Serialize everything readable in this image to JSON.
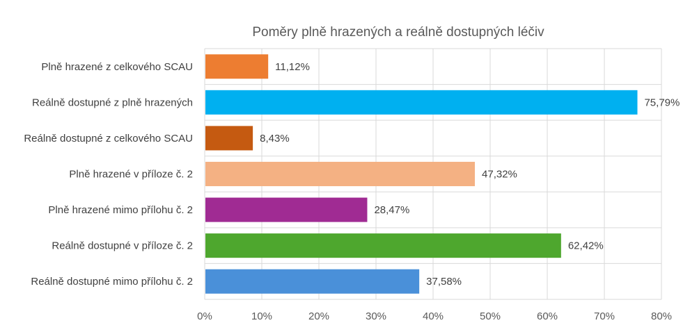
{
  "chart_data": {
    "type": "bar",
    "orientation": "horizontal",
    "title": "Poměry plně hrazených a reálně dostupných léčiv",
    "categories": [
      "Plně hrazené z celkového SCAU",
      "Reálně dostupné z plně hrazených",
      "Reálně dostupné z celkového SCAU",
      "Plně hrazené v příloze č. 2",
      "Plně hrazené mimo přílohu č. 2",
      "Reálně dostupné v příloze č. 2",
      "Reálně dostupné mimo přílohu č. 2"
    ],
    "values": [
      11.12,
      75.79,
      8.43,
      47.32,
      28.47,
      62.42,
      37.58
    ],
    "data_labels": [
      "11,12%",
      "75,79%",
      "8,43%",
      "47,32%",
      "28,47%",
      "62,42%",
      "37,58%"
    ],
    "colors": [
      "#ED7D31",
      "#00B0F0",
      "#C55A11",
      "#F4B183",
      "#A02B93",
      "#4EA72E",
      "#4A90D9"
    ],
    "xlim": [
      0,
      80
    ],
    "ticks": [
      0,
      10,
      20,
      30,
      40,
      50,
      60,
      70,
      80
    ],
    "tick_labels": [
      "0%",
      "10%",
      "20%",
      "30%",
      "40%",
      "50%",
      "60%",
      "70%",
      "80%"
    ],
    "grid": true,
    "legend": "none"
  }
}
